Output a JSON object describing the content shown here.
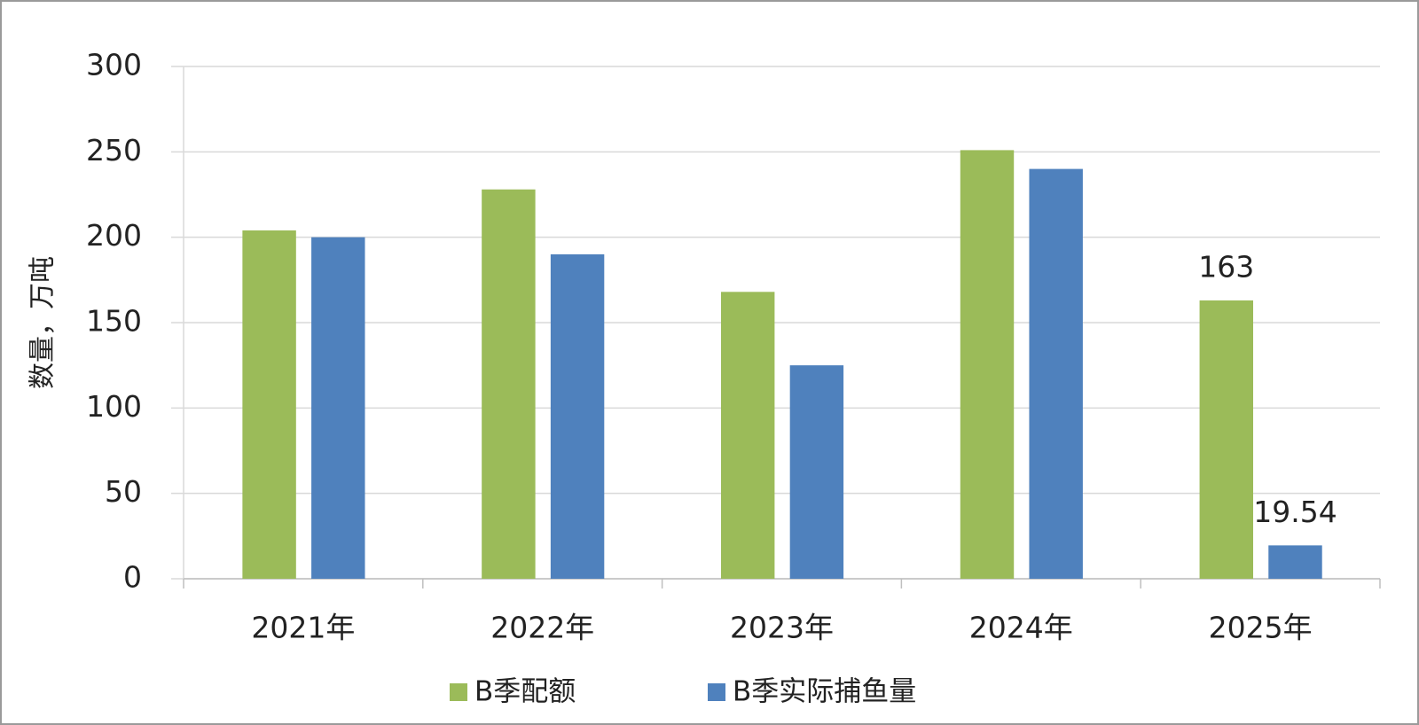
{
  "chart_data": {
    "type": "bar",
    "y_label": "数量，万吨",
    "categories": [
      "2021年",
      "2022年",
      "2023年",
      "2024年",
      "2025年"
    ],
    "series": [
      {
        "name": "B季配额",
        "color": "#9bbb59",
        "values": [
          204,
          228,
          168,
          251,
          163
        ],
        "value_labels": [
          null,
          null,
          null,
          null,
          "163"
        ]
      },
      {
        "name": "B季实际捕鱼量",
        "color": "#4f81bd",
        "values": [
          200,
          190,
          125,
          240,
          19.54
        ],
        "value_labels": [
          null,
          null,
          null,
          null,
          "19.54"
        ]
      }
    ],
    "ylim": [
      0,
      300
    ],
    "yticks": [
      0,
      50,
      100,
      150,
      200,
      250,
      300
    ],
    "grid": true,
    "legend": "bottom"
  }
}
